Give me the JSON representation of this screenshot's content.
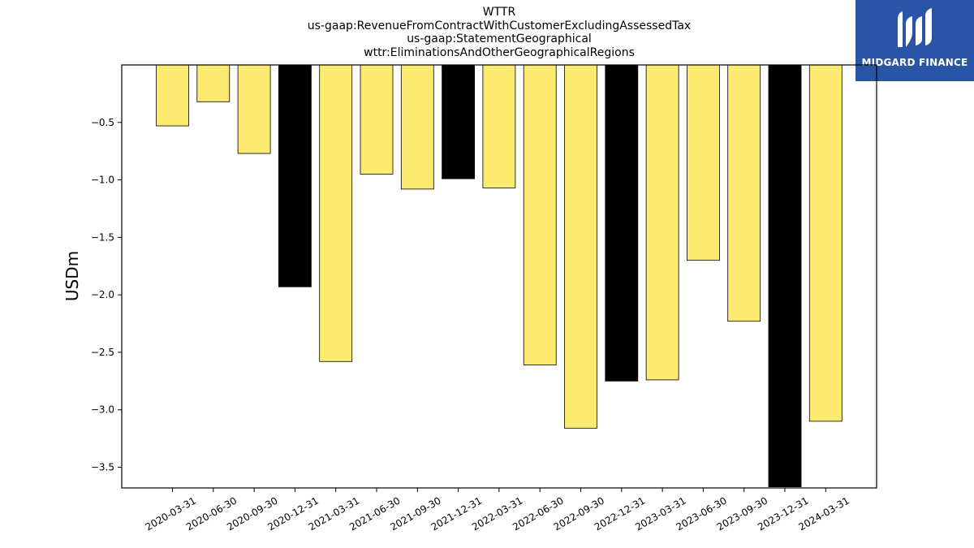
{
  "titles": {
    "line1": "WTTR",
    "line2": "us-gaap:RevenueFromContractWithCustomerExcludingAssessedTax",
    "line3": "us-gaap:StatementGeographical",
    "line4": "wttr:EliminationsAndOtherGeographicalRegions"
  },
  "logo": {
    "text": "MIDGARD FINANCE",
    "icon": "midgard-logo-icon",
    "color": "#2a55a6"
  },
  "chart_data": {
    "type": "bar",
    "title": "WTTR",
    "ylabel": "USDm",
    "xlabel": "",
    "ylim": [
      -3.68,
      0
    ],
    "yticks": [
      -0.5,
      -1.0,
      -1.5,
      -2.0,
      -2.5,
      -3.0,
      -3.5
    ],
    "ytick_labels": [
      "−0.5",
      "−1.0",
      "−1.5",
      "−2.0",
      "−2.5",
      "−3.0",
      "−3.5"
    ],
    "grid": false,
    "categories": [
      "2020-03-31",
      "2020-06-30",
      "2020-09-30",
      "2020-12-31",
      "2021-03-31",
      "2021-06-30",
      "2021-09-30",
      "2021-12-31",
      "2022-03-31",
      "2022-06-30",
      "2022-09-30",
      "2022-12-31",
      "2023-03-31",
      "2023-06-30",
      "2023-09-30",
      "2023-12-31",
      "2024-03-31"
    ],
    "values": [
      -0.53,
      -0.32,
      -0.77,
      -1.93,
      -2.58,
      -0.95,
      -1.08,
      -0.99,
      -1.07,
      -2.61,
      -3.16,
      -2.75,
      -2.74,
      -1.7,
      -2.23,
      -3.67,
      -3.1
    ],
    "colors": [
      "#fdeb71",
      "#fdeb71",
      "#fdeb71",
      "#000000",
      "#fdeb71",
      "#fdeb71",
      "#fdeb71",
      "#000000",
      "#fdeb71",
      "#fdeb71",
      "#fdeb71",
      "#000000",
      "#fdeb71",
      "#fdeb71",
      "#fdeb71",
      "#000000",
      "#fdeb71"
    ]
  }
}
